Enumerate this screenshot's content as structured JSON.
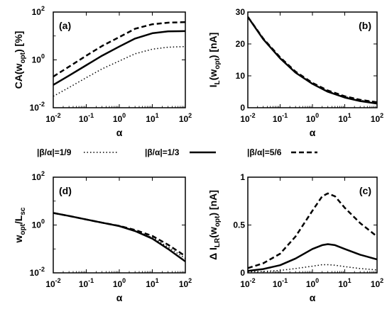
{
  "legend": [
    {
      "label": "|β/α|=1/9",
      "style": "dotted"
    },
    {
      "label": "|β/α|=1/3",
      "style": "solid"
    },
    {
      "label": "|β/α|=5/6",
      "style": "dashed"
    }
  ],
  "chart_data": [
    {
      "id": "a",
      "type": "line",
      "panel_label": "(a)",
      "xlabel": "α",
      "ylabel": "CA(w_opt) [%]",
      "xscale": "log",
      "yscale": "log",
      "xlim": [
        0.01,
        100
      ],
      "ylim": [
        0.01,
        100
      ],
      "xticks": [
        {
          "b": "10",
          "e": "-2"
        },
        {
          "b": "10",
          "e": "-1"
        },
        {
          "b": "10",
          "e": "0"
        },
        {
          "b": "10",
          "e": "1"
        },
        {
          "b": "10",
          "e": "2"
        }
      ],
      "yticks": [
        {
          "v": 0.01,
          "b": "10",
          "e": "-2"
        },
        {
          "v": 1,
          "b": "10",
          "e": "0"
        },
        {
          "v": 100,
          "b": "10",
          "e": "2"
        }
      ],
      "ylab_parts": [
        {
          "t": "CA(w"
        },
        {
          "t": "opt",
          "sub": true
        },
        {
          "t": ") [%]"
        }
      ],
      "series": [
        {
          "style": "dotted",
          "x": [
            0.01,
            0.03,
            0.1,
            0.3,
            1,
            3,
            10,
            30,
            100
          ],
          "y": [
            0.03,
            0.07,
            0.18,
            0.42,
            0.9,
            1.8,
            2.8,
            3.4,
            3.6
          ]
        },
        {
          "style": "solid",
          "x": [
            0.01,
            0.03,
            0.1,
            0.3,
            1,
            3,
            10,
            30,
            100
          ],
          "y": [
            0.09,
            0.22,
            0.6,
            1.5,
            3.6,
            7.8,
            13,
            15.5,
            16
          ]
        },
        {
          "style": "dashed",
          "x": [
            0.01,
            0.03,
            0.1,
            0.3,
            1,
            3,
            10,
            30,
            100
          ],
          "y": [
            0.2,
            0.52,
            1.5,
            3.8,
            9,
            20,
            31,
            36,
            38
          ]
        }
      ]
    },
    {
      "id": "b",
      "type": "line",
      "panel_label": "(b)",
      "xlabel": "α",
      "ylabel": "I_L(w_opt) [nA]",
      "xscale": "log",
      "yscale": "linear",
      "xlim": [
        0.01,
        100
      ],
      "ylim": [
        0,
        30
      ],
      "xticks": [
        {
          "b": "10",
          "e": "-2"
        },
        {
          "b": "10",
          "e": "-1"
        },
        {
          "b": "10",
          "e": "0"
        },
        {
          "b": "10",
          "e": "1"
        },
        {
          "b": "10",
          "e": "2"
        }
      ],
      "yticks": [
        {
          "v": 0,
          "b": "0"
        },
        {
          "v": 10,
          "b": "10"
        },
        {
          "v": 20,
          "b": "20"
        },
        {
          "v": 30,
          "b": "30"
        }
      ],
      "ylab_parts": [
        {
          "t": "I"
        },
        {
          "t": "L",
          "sub": true
        },
        {
          "t": "(w"
        },
        {
          "t": "opt",
          "sub": true
        },
        {
          "t": ") [nA]"
        }
      ],
      "series": [
        {
          "style": "dotted",
          "x": [
            0.01,
            0.03,
            0.1,
            0.3,
            1,
            3,
            10,
            30,
            100
          ],
          "y": [
            28.5,
            21.5,
            15.5,
            11,
            7.5,
            5.2,
            3.5,
            2.4,
            1.6
          ]
        },
        {
          "style": "solid",
          "x": [
            0.01,
            0.03,
            0.1,
            0.3,
            1,
            3,
            10,
            30,
            100
          ],
          "y": [
            28.5,
            21.5,
            15.5,
            11,
            7.5,
            5,
            3.2,
            2.1,
            1.3
          ]
        },
        {
          "style": "dashed",
          "x": [
            0.01,
            0.03,
            0.1,
            0.3,
            1,
            3,
            10,
            30,
            100
          ],
          "y": [
            28.5,
            21.7,
            15.8,
            11.3,
            7.8,
            5.4,
            3.6,
            2.5,
            1.7
          ]
        }
      ]
    },
    {
      "id": "d",
      "type": "line",
      "panel_label": "(d)",
      "xlabel": "α",
      "ylabel": "w_opt/L_sc",
      "xscale": "log",
      "yscale": "log",
      "xlim": [
        0.01,
        100
      ],
      "ylim": [
        0.01,
        100
      ],
      "xticks": [
        {
          "b": "10",
          "e": "-2"
        },
        {
          "b": "10",
          "e": "-1"
        },
        {
          "b": "10",
          "e": "0"
        },
        {
          "b": "10",
          "e": "1"
        },
        {
          "b": "10",
          "e": "2"
        }
      ],
      "yticks": [
        {
          "v": 0.01,
          "b": "10",
          "e": "-2"
        },
        {
          "v": 1,
          "b": "10",
          "e": "0"
        },
        {
          "v": 100,
          "b": "10",
          "e": "2"
        }
      ],
      "ylab_parts": [
        {
          "t": "w"
        },
        {
          "t": "opt",
          "sub": true
        },
        {
          "t": "/L"
        },
        {
          "t": "sc",
          "sub": true
        }
      ],
      "series": [
        {
          "style": "dotted",
          "x": [
            0.01,
            0.03,
            0.1,
            0.3,
            1,
            3,
            10,
            30,
            100
          ],
          "y": [
            3.2,
            2.4,
            1.7,
            1.25,
            0.9,
            0.58,
            0.3,
            0.12,
            0.04
          ]
        },
        {
          "style": "solid",
          "x": [
            0.01,
            0.03,
            0.1,
            0.3,
            1,
            3,
            10,
            30,
            100
          ],
          "y": [
            3.2,
            2.4,
            1.7,
            1.25,
            0.9,
            0.56,
            0.27,
            0.1,
            0.03
          ]
        },
        {
          "style": "dashed",
          "x": [
            0.01,
            0.03,
            0.1,
            0.3,
            1,
            3,
            10,
            30,
            100
          ],
          "y": [
            3.2,
            2.4,
            1.7,
            1.25,
            0.92,
            0.62,
            0.35,
            0.15,
            0.05
          ]
        }
      ]
    },
    {
      "id": "c",
      "type": "line",
      "panel_label": "(c)",
      "xlabel": "α",
      "ylabel": "Δ I_LR(w_opt) [nA]",
      "xscale": "log",
      "yscale": "linear",
      "xlim": [
        0.01,
        100
      ],
      "ylim": [
        0,
        1
      ],
      "xticks": [
        {
          "b": "10",
          "e": "-2"
        },
        {
          "b": "10",
          "e": "-1"
        },
        {
          "b": "10",
          "e": "0"
        },
        {
          "b": "10",
          "e": "1"
        },
        {
          "b": "10",
          "e": "2"
        }
      ],
      "yticks": [
        {
          "v": 0,
          "b": "0"
        },
        {
          "v": 0.5,
          "b": "0.5"
        },
        {
          "v": 1,
          "b": "1"
        }
      ],
      "ylab_parts": [
        {
          "t": "Δ I"
        },
        {
          "t": "LR",
          "sub": true
        },
        {
          "t": "(w"
        },
        {
          "t": "opt",
          "sub": true
        },
        {
          "t": ") [nA]"
        }
      ],
      "series": [
        {
          "style": "dotted",
          "x": [
            0.01,
            0.03,
            0.1,
            0.3,
            1,
            2,
            3,
            5,
            10,
            30,
            100
          ],
          "y": [
            0.01,
            0.015,
            0.025,
            0.045,
            0.07,
            0.085,
            0.085,
            0.08,
            0.065,
            0.045,
            0.03
          ]
        },
        {
          "style": "solid",
          "x": [
            0.01,
            0.03,
            0.1,
            0.3,
            1,
            2,
            3,
            5,
            10,
            30,
            100
          ],
          "y": [
            0.02,
            0.04,
            0.08,
            0.15,
            0.25,
            0.29,
            0.3,
            0.29,
            0.25,
            0.19,
            0.14
          ]
        },
        {
          "style": "dashed",
          "x": [
            0.01,
            0.03,
            0.1,
            0.3,
            1,
            2,
            3,
            5,
            10,
            30,
            100
          ],
          "y": [
            0.05,
            0.1,
            0.2,
            0.38,
            0.65,
            0.8,
            0.83,
            0.8,
            0.68,
            0.52,
            0.38
          ]
        }
      ]
    }
  ]
}
